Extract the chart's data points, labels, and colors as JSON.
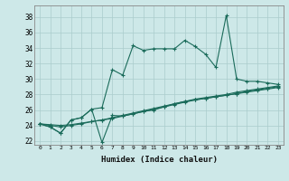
{
  "title": "",
  "xlabel": "Humidex (Indice chaleur)",
  "ylabel": "",
  "background_color": "#cde8e8",
  "grid_color": "#aacccc",
  "line_color": "#1a6b5a",
  "xlim": [
    -0.5,
    23.5
  ],
  "ylim": [
    21.5,
    39.5
  ],
  "xticks": [
    0,
    1,
    2,
    3,
    4,
    5,
    6,
    7,
    8,
    9,
    10,
    11,
    12,
    13,
    14,
    15,
    16,
    17,
    18,
    19,
    20,
    21,
    22,
    23
  ],
  "yticks": [
    22,
    24,
    26,
    28,
    30,
    32,
    34,
    36,
    38
  ],
  "series": [
    [
      24.2,
      23.8,
      23.0,
      24.7,
      25.0,
      26.1,
      26.3,
      31.2,
      30.5,
      34.3,
      33.7,
      33.9,
      33.9,
      33.9,
      35.0,
      34.2,
      33.2,
      31.5,
      38.2,
      30.0,
      29.7,
      29.7,
      29.5,
      29.3
    ],
    [
      24.2,
      23.8,
      23.0,
      24.7,
      25.0,
      26.1,
      21.8,
      25.3,
      25.2,
      25.5,
      25.8,
      26.0,
      26.4,
      26.8,
      27.1,
      27.4,
      27.6,
      27.8,
      28.0,
      28.3,
      28.5,
      28.7,
      28.9,
      29.1
    ],
    [
      24.2,
      24.0,
      23.8,
      24.0,
      24.2,
      24.5,
      24.7,
      24.9,
      25.2,
      25.5,
      25.8,
      26.1,
      26.4,
      26.7,
      27.0,
      27.3,
      27.5,
      27.7,
      27.9,
      28.1,
      28.3,
      28.5,
      28.7,
      28.9
    ],
    [
      24.2,
      24.1,
      24.0,
      24.1,
      24.3,
      24.5,
      24.7,
      25.0,
      25.3,
      25.6,
      25.9,
      26.2,
      26.5,
      26.8,
      27.1,
      27.3,
      27.5,
      27.7,
      27.9,
      28.1,
      28.4,
      28.6,
      28.8,
      29.0
    ]
  ]
}
